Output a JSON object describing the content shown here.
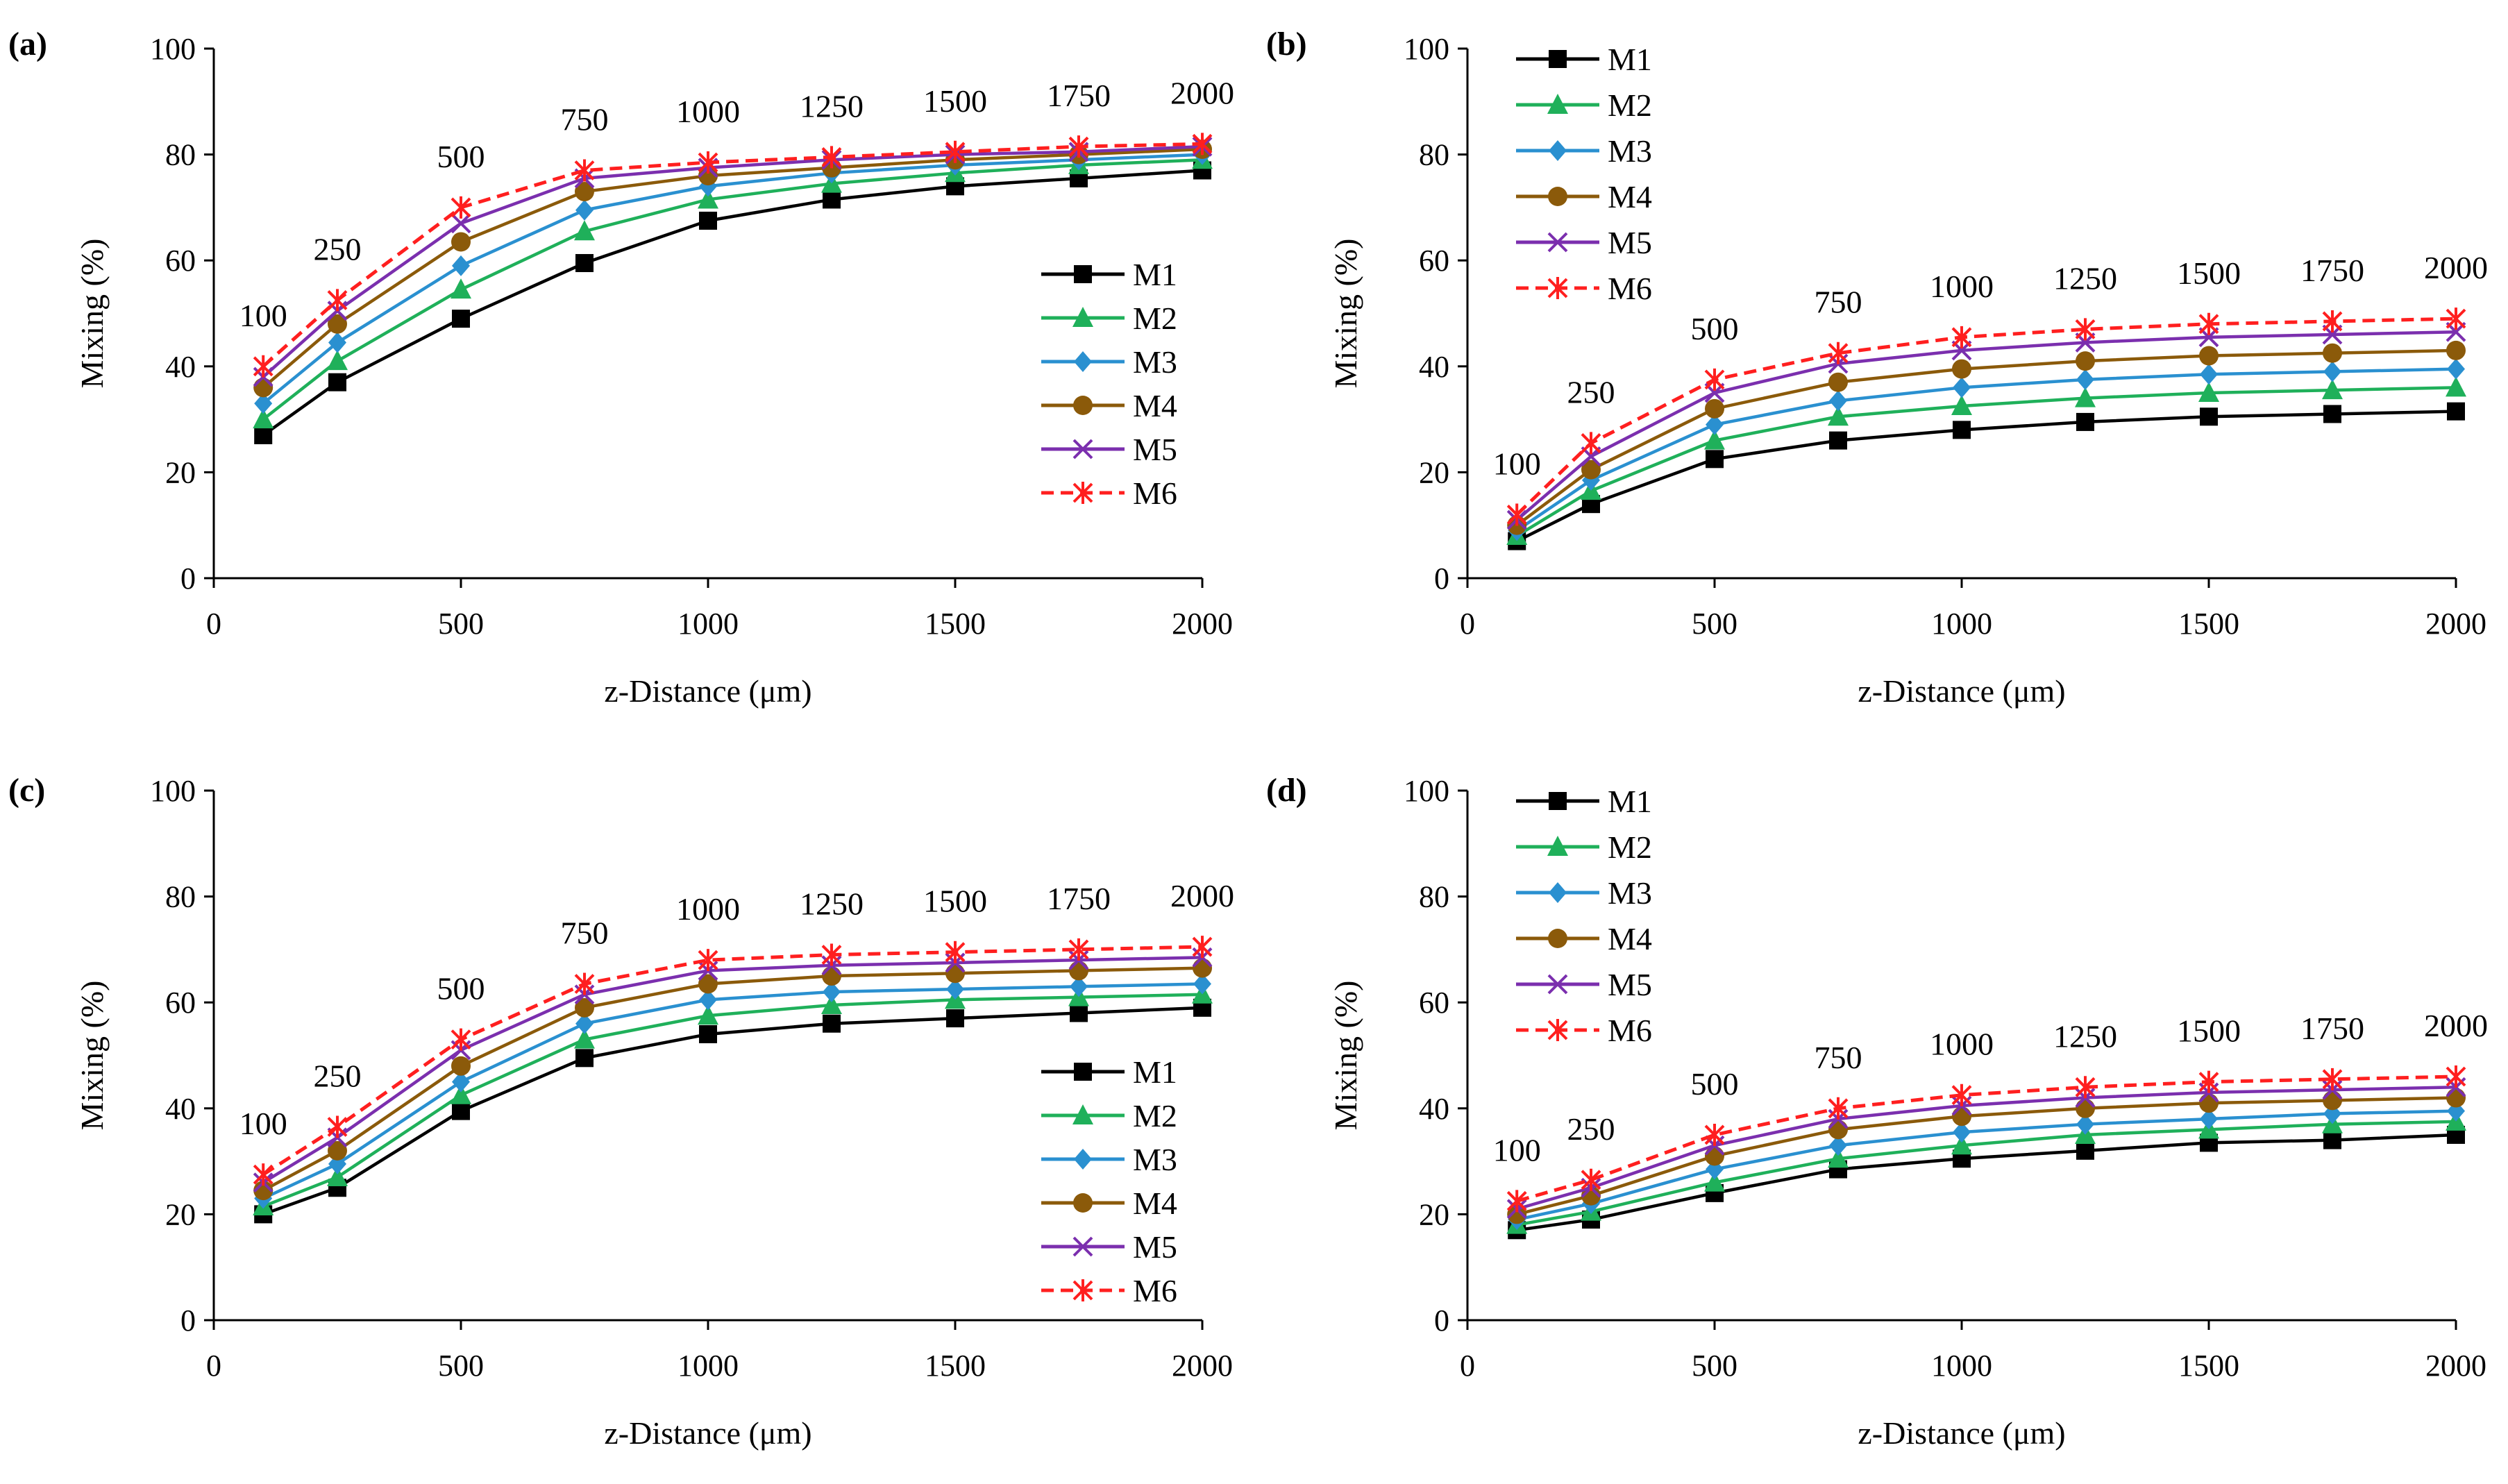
{
  "figure": {
    "series_colors": {
      "M1": "#000000",
      "M2": "#1fb05a",
      "M3": "#2a90d0",
      "M4": "#8b5a0a",
      "M5": "#7b2fae",
      "M6": "#ff1f1f"
    }
  },
  "chart_data": [
    {
      "panel": "(a)",
      "type": "line",
      "xlabel": "z-Distance (μm)",
      "ylabel": "Mixing (%)",
      "xlim": [
        0,
        2000
      ],
      "ylim": [
        0,
        100
      ],
      "xticks": [
        "0",
        "500",
        "1000",
        "1500",
        "2000"
      ],
      "yticks": [
        "0",
        "20",
        "40",
        "60",
        "80",
        "100"
      ],
      "legend": "right-middle",
      "x": [
        100,
        250,
        500,
        750,
        1000,
        1250,
        1500,
        1750,
        2000
      ],
      "annotations": [
        "100",
        "250",
        "500",
        "750",
        "1000",
        "1250",
        "1500",
        "1750",
        "2000"
      ],
      "series": [
        {
          "name": "M1",
          "values": [
            27,
            37,
            49,
            59.5,
            67.5,
            71.5,
            74,
            75.5,
            77
          ]
        },
        {
          "name": "M2",
          "values": [
            30,
            41,
            54.5,
            65.5,
            71.5,
            74.5,
            76.5,
            78,
            79
          ]
        },
        {
          "name": "M3",
          "values": [
            33,
            44.5,
            59,
            69.5,
            74,
            76.5,
            78,
            79,
            80
          ]
        },
        {
          "name": "M4",
          "values": [
            36,
            48,
            63.5,
            73,
            76,
            77.5,
            79,
            80,
            81
          ]
        },
        {
          "name": "M5",
          "values": [
            38,
            50.5,
            67,
            75.5,
            77.5,
            79,
            80,
            80.5,
            81.5
          ]
        },
        {
          "name": "M6",
          "values": [
            40,
            52.5,
            70,
            77,
            78.5,
            79.5,
            80.5,
            81.5,
            82
          ]
        }
      ]
    },
    {
      "panel": "(b)",
      "type": "line",
      "xlabel": "z-Distance (μm)",
      "ylabel": "Mixing (%)",
      "xlim": [
        0,
        2000
      ],
      "ylim": [
        0,
        100
      ],
      "xticks": [
        "0",
        "500",
        "1000",
        "1500",
        "2000"
      ],
      "yticks": [
        "0",
        "20",
        "40",
        "60",
        "80",
        "100"
      ],
      "legend": "top-left",
      "x": [
        100,
        250,
        500,
        750,
        1000,
        1250,
        1500,
        1750,
        2000
      ],
      "annotations": [
        "100",
        "250",
        "500",
        "750",
        "1000",
        "1250",
        "1500",
        "1750",
        "2000"
      ],
      "series": [
        {
          "name": "M1",
          "values": [
            7,
            14,
            22.5,
            26,
            28,
            29.5,
            30.5,
            31,
            31.5
          ]
        },
        {
          "name": "M2",
          "values": [
            8,
            16.5,
            26,
            30.5,
            32.5,
            34,
            35,
            35.5,
            36
          ]
        },
        {
          "name": "M3",
          "values": [
            9,
            18.5,
            29,
            33.5,
            36,
            37.5,
            38.5,
            39,
            39.5
          ]
        },
        {
          "name": "M4",
          "values": [
            10,
            20.5,
            32,
            37,
            39.5,
            41,
            42,
            42.5,
            43
          ]
        },
        {
          "name": "M5",
          "values": [
            11,
            23,
            35,
            40.5,
            43,
            44.5,
            45.5,
            46,
            46.5
          ]
        },
        {
          "name": "M6",
          "values": [
            12,
            25.5,
            37.5,
            42.5,
            45.5,
            47,
            48,
            48.5,
            49
          ]
        }
      ]
    },
    {
      "panel": "(c)",
      "type": "line",
      "xlabel": "z-Distance (μm)",
      "ylabel": "Mixing (%)",
      "xlim": [
        0,
        2000
      ],
      "ylim": [
        0,
        100
      ],
      "xticks": [
        "0",
        "500",
        "1000",
        "1500",
        "2000"
      ],
      "yticks": [
        "0",
        "20",
        "40",
        "60",
        "80",
        "100"
      ],
      "legend": "bottom-right",
      "x": [
        100,
        250,
        500,
        750,
        1000,
        1250,
        1500,
        1750,
        2000
      ],
      "annotations": [
        "100",
        "250",
        "500",
        "750",
        "1000",
        "1250",
        "1500",
        "1750",
        "2000"
      ],
      "series": [
        {
          "name": "M1",
          "values": [
            20,
            25,
            39.5,
            49.5,
            54,
            56,
            57,
            58,
            59
          ]
        },
        {
          "name": "M2",
          "values": [
            21.5,
            27,
            42.5,
            53,
            57.5,
            59.5,
            60.5,
            61,
            61.5
          ]
        },
        {
          "name": "M3",
          "values": [
            23,
            29.5,
            45,
            56,
            60.5,
            62,
            62.5,
            63,
            63.5
          ]
        },
        {
          "name": "M4",
          "values": [
            24.5,
            32,
            48,
            59,
            63.5,
            65,
            65.5,
            66,
            66.5
          ]
        },
        {
          "name": "M5",
          "values": [
            26,
            34.5,
            51,
            61.5,
            66,
            67,
            67.5,
            68,
            68.5
          ]
        },
        {
          "name": "M6",
          "values": [
            27.5,
            36.5,
            53,
            63.5,
            68,
            69,
            69.5,
            70,
            70.5
          ]
        }
      ]
    },
    {
      "panel": "(d)",
      "type": "line",
      "xlabel": "z-Distance (μm)",
      "ylabel": "Mixing (%)",
      "xlim": [
        0,
        2000
      ],
      "ylim": [
        0,
        100
      ],
      "xticks": [
        "0",
        "500",
        "1000",
        "1500",
        "2000"
      ],
      "yticks": [
        "0",
        "20",
        "40",
        "60",
        "80",
        "100"
      ],
      "legend": "top-left",
      "x": [
        100,
        250,
        500,
        750,
        1000,
        1250,
        1500,
        1750,
        2000
      ],
      "annotations": [
        "100",
        "250",
        "500",
        "750",
        "1000",
        "1250",
        "1500",
        "1750",
        "2000"
      ],
      "series": [
        {
          "name": "M1",
          "values": [
            17,
            19,
            24,
            28.5,
            30.5,
            32,
            33.5,
            34,
            35
          ]
        },
        {
          "name": "M2",
          "values": [
            18,
            20.5,
            26,
            30.5,
            33,
            35,
            36,
            37,
            37.5
          ]
        },
        {
          "name": "M3",
          "values": [
            19,
            22,
            28.5,
            33,
            35.5,
            37,
            38,
            39,
            39.5
          ]
        },
        {
          "name": "M4",
          "values": [
            20,
            23.5,
            31,
            36,
            38.5,
            40,
            41,
            41.5,
            42
          ]
        },
        {
          "name": "M5",
          "values": [
            21,
            25,
            33,
            38,
            40.5,
            42,
            43,
            43.5,
            44
          ]
        },
        {
          "name": "M6",
          "values": [
            22.5,
            26.5,
            35,
            40,
            42.5,
            44,
            45,
            45.5,
            46
          ]
        }
      ]
    }
  ]
}
